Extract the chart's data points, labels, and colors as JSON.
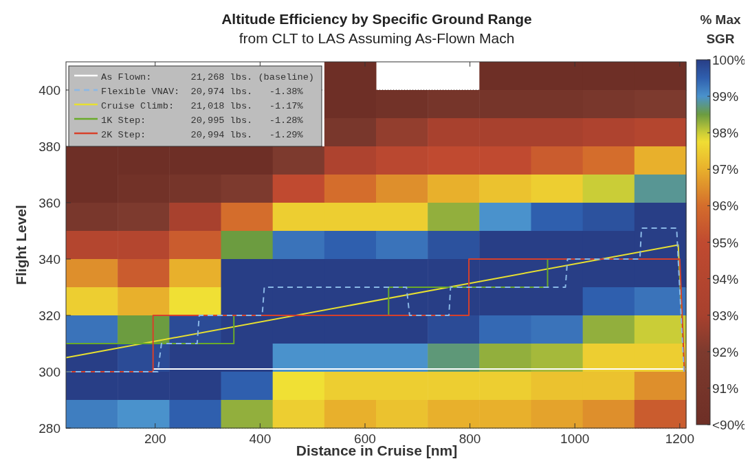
{
  "chart_data": {
    "type": "heatmap",
    "title": "Altitude Efficiency by Specific Ground Range",
    "subtitle": "from CLT to LAS Assuming As-Flown Mach",
    "xlabel": "Distance in Cruise [nm]",
    "ylabel": "Flight Level",
    "clabel": "% Max SGR",
    "x": [
      79.25,
      177.75,
      276.25,
      374.75,
      473.25,
      571.75,
      670.25,
      768.75,
      867.25,
      965.75,
      1064.25,
      1162.75
    ],
    "y": [
      405,
      395,
      385,
      375,
      365,
      355,
      345,
      335,
      325,
      315,
      305,
      295,
      285
    ],
    "cells": [
      [
        null,
        null,
        null,
        null,
        null,
        90,
        null,
        null,
        90,
        90,
        90,
        90
      ],
      [
        null,
        null,
        null,
        null,
        null,
        90,
        90.5,
        91,
        91,
        91,
        91.5,
        92
      ],
      [
        null,
        null,
        null,
        null,
        null,
        91.5,
        92.5,
        93,
        93,
        93,
        93.5,
        94
      ],
      [
        90,
        90,
        90,
        90,
        92,
        93.5,
        94.5,
        95,
        95,
        95.5,
        96,
        97
      ],
      [
        90,
        90.5,
        91,
        92,
        95,
        96,
        96.5,
        97,
        97.3,
        97.5,
        98,
        98.8
      ],
      [
        91.5,
        92,
        93,
        96,
        97.5,
        97.5,
        97.5,
        98.3,
        99,
        99.5,
        99.7,
        100
      ],
      [
        94,
        94,
        95.5,
        98.5,
        99.3,
        99.5,
        99.3,
        99.7,
        100,
        100,
        100,
        100
      ],
      [
        96.5,
        95.5,
        97,
        100,
        100,
        100,
        100,
        100,
        100,
        100,
        100,
        100
      ],
      [
        97.5,
        97,
        97.8,
        100,
        100,
        100,
        100,
        100,
        100,
        100,
        99.5,
        99.3
      ],
      [
        99.3,
        98.5,
        99.8,
        100,
        100,
        100,
        100,
        99.8,
        99.4,
        99.3,
        98.3,
        98
      ],
      [
        100,
        99.8,
        100,
        100,
        99,
        99,
        99,
        98.7,
        98.3,
        98.2,
        97.5,
        97.5
      ],
      [
        100,
        100,
        100,
        99.5,
        97.8,
        97.5,
        97.5,
        97.5,
        97.5,
        97.3,
        97.3,
        96.5
      ],
      [
        99.2,
        99,
        99.5,
        98.3,
        97.5,
        97,
        97.3,
        97,
        97,
        96.8,
        96.5,
        95.5
      ]
    ],
    "clim": [
      90,
      100
    ],
    "cticks": [
      {
        "value": 90,
        "label": "<90%"
      },
      {
        "value": 91,
        "label": "91%"
      },
      {
        "value": 92,
        "label": "92%"
      },
      {
        "value": 93,
        "label": "93%"
      },
      {
        "value": 94,
        "label": "94%"
      },
      {
        "value": 95,
        "label": "95%"
      },
      {
        "value": 96,
        "label": "96%"
      },
      {
        "value": 97,
        "label": "97%"
      },
      {
        "value": 98,
        "label": "98%"
      },
      {
        "value": 99,
        "label": "99%"
      },
      {
        "value": 100,
        "label": "100%"
      }
    ],
    "xlim": [
      30,
      1212
    ],
    "ylim": [
      280,
      410
    ],
    "xticks": [
      200,
      400,
      600,
      800,
      1000,
      1200
    ],
    "yticks": [
      280,
      300,
      320,
      340,
      360,
      380,
      400
    ],
    "grid": "y",
    "legend": "top left",
    "series": [
      {
        "type": "line",
        "name": "As Flown:       21,268 lbs. (baseline)",
        "color": "#ffffff",
        "line_style": "solid",
        "x": [
          196,
          1212
        ],
        "values": [
          301,
          301
        ]
      },
      {
        "type": "line",
        "name": "Flexible VNAV:  20,974 lbs.   -1.38%",
        "color": "#8ab8e6",
        "line_style": "dashed",
        "x": [
          30,
          205,
          212,
          280,
          284,
          404,
          408,
          679,
          685,
          760,
          763,
          982,
          986,
          1124,
          1127,
          1194,
          1197,
          1208
        ],
        "values": [
          300,
          300,
          310,
          310,
          320,
          320,
          330,
          330,
          320,
          320,
          330,
          330,
          340,
          340,
          351,
          351,
          340,
          300
        ]
      },
      {
        "type": "line",
        "name": "Cruise Climb:   21,018 lbs.   -1.17%",
        "color": "#e8e030",
        "line_style": "solid",
        "x": [
          30,
          1197,
          1209
        ],
        "values": [
          305,
          345,
          300
        ]
      },
      {
        "type": "line",
        "name": "1K Step:        20,995 lbs.   -1.28%",
        "color": "#6aaa2a",
        "line_style": "solid",
        "x": [
          30,
          350,
          350,
          645,
          645,
          948,
          948,
          1199,
          1209
        ],
        "values": [
          310,
          310,
          320,
          320,
          330,
          330,
          340,
          340,
          300
        ]
      },
      {
        "type": "line",
        "name": "2K Step:        20,994 lbs.   -1.29%",
        "color": "#d8402a",
        "line_style": "solid",
        "x": [
          30,
          196,
          196,
          798,
          798,
          1200,
          1209
        ],
        "values": [
          300,
          300,
          320,
          320,
          340,
          340,
          300
        ]
      }
    ]
  }
}
